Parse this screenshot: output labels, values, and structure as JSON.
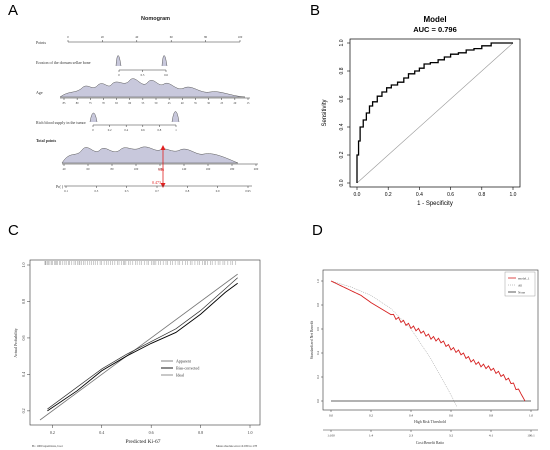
{
  "panels": {
    "a": {
      "letter": "A",
      "title": "Nomogram",
      "points_label": "Points",
      "points_ticks": [
        "0",
        "20",
        "40",
        "60",
        "80",
        "100"
      ],
      "row1_label": "Erosion of the dorsum sellae bone",
      "row1_ticks": [
        "0",
        "0.5",
        "0.6"
      ],
      "age_label": "Age",
      "age_ticks": [
        "85",
        "80",
        "75",
        "70",
        "65",
        "60",
        "55",
        "50",
        "45",
        "40",
        "35",
        "30",
        "25",
        "20",
        "15"
      ],
      "row3_label": "Rich blood supply in the tumor",
      "row3_ticks": [
        "0",
        "0.2",
        "0.4",
        "0.6",
        "0.8",
        "1"
      ],
      "total_label": "Total points",
      "total_ticks": [
        "40",
        "60",
        "80",
        "100",
        "120",
        "140",
        "160",
        "180",
        "200"
      ],
      "total_marker": "146",
      "prob_label": "Pr( )",
      "prob_ticks": [
        "0.1",
        "0.3",
        "0.5",
        "0.7",
        "0.8",
        "0.9",
        "0.95"
      ],
      "prob_marker": "0.473"
    },
    "b": {
      "letter": "B",
      "title": "Model",
      "subtitle": "AUC = 0.796",
      "xlabel": "1 - Specificity",
      "ylabel": "Sensitivity",
      "xticks": [
        "0.0",
        "0.2",
        "0.4",
        "0.6",
        "0.8",
        "1.0"
      ],
      "yticks": [
        "0.0",
        "0.2",
        "0.4",
        "0.6",
        "0.8",
        "1.0"
      ]
    },
    "c": {
      "letter": "C",
      "xlabel": "Predicted Ki-67",
      "ylabel": "Actual Probability",
      "xticks": [
        "0.2",
        "0.4",
        "0.6",
        "0.8",
        "1.0"
      ],
      "yticks": [
        "0.2",
        "0.4",
        "0.6",
        "0.8",
        "1.0"
      ],
      "legend": [
        "Apparent",
        "Bias-corrected",
        "Ideal"
      ],
      "footer_left": "B= 1000 repetitions, boot",
      "footer_right": "Mean absolute error=0.039 n=178"
    },
    "d": {
      "letter": "D",
      "xlabel": "High Risk Threshold",
      "ylabel": "Standardized Net Benefit",
      "x2label": "Cost:Benefit Ratio",
      "xticks": [
        "0.0",
        "0.2",
        "0.4",
        "0.6",
        "0.8",
        "1.0"
      ],
      "yticks": [
        "0.0",
        "0.2",
        "0.4",
        "0.6",
        "0.8",
        "1.0"
      ],
      "x2ticks": [
        "1:100",
        "1:4",
        "2:3",
        "3:2",
        "4:1",
        "100:1"
      ],
      "legend": [
        "model_1",
        "All",
        "None"
      ]
    }
  },
  "chart_data": [
    {
      "type": "line",
      "panel": "B",
      "title": "Model",
      "subtitle": "AUC = 0.796",
      "xlabel": "1 - Specificity",
      "ylabel": "Sensitivity",
      "xlim": [
        0,
        1
      ],
      "ylim": [
        0,
        1
      ],
      "series": [
        {
          "x": [
            0,
            0,
            0.01,
            0.01,
            0.02,
            0.02,
            0.04,
            0.04,
            0.06,
            0.06,
            0.08,
            0.08,
            0.1,
            0.1,
            0.13,
            0.13,
            0.16,
            0.16,
            0.19,
            0.19,
            0.22,
            0.22,
            0.26,
            0.26,
            0.3,
            0.3,
            0.33,
            0.33,
            0.37,
            0.37,
            0.4,
            0.4,
            0.43,
            0.43,
            0.47,
            0.47,
            0.52,
            0.52,
            0.56,
            0.56,
            0.6,
            0.6,
            0.65,
            0.65,
            0.7,
            0.7,
            0.75,
            0.75,
            0.8,
            0.8,
            0.86,
            0.86,
            0.93,
            1.0
          ],
          "y": [
            0,
            0.2,
            0.2,
            0.3,
            0.3,
            0.4,
            0.4,
            0.45,
            0.45,
            0.5,
            0.5,
            0.55,
            0.55,
            0.58,
            0.58,
            0.62,
            0.62,
            0.65,
            0.65,
            0.68,
            0.68,
            0.7,
            0.7,
            0.72,
            0.72,
            0.75,
            0.75,
            0.78,
            0.78,
            0.8,
            0.8,
            0.82,
            0.82,
            0.85,
            0.85,
            0.86,
            0.86,
            0.88,
            0.88,
            0.9,
            0.9,
            0.92,
            0.92,
            0.93,
            0.93,
            0.95,
            0.95,
            0.96,
            0.96,
            0.98,
            0.98,
            1.0,
            1.0,
            1.0
          ]
        },
        {
          "x": [
            0,
            1
          ],
          "y": [
            0,
            1
          ]
        }
      ]
    },
    {
      "type": "line",
      "panel": "C",
      "xlabel": "Predicted Ki-67",
      "ylabel": "Actual Probability",
      "xlim": [
        0.15,
        1.0
      ],
      "ylim": [
        0.15,
        1.0
      ],
      "series": [
        {
          "name": "Apparent",
          "x": [
            0.18,
            0.3,
            0.4,
            0.5,
            0.6,
            0.7,
            0.8,
            0.9,
            0.95
          ],
          "y": [
            0.21,
            0.33,
            0.43,
            0.51,
            0.58,
            0.65,
            0.75,
            0.87,
            0.93
          ]
        },
        {
          "name": "Bias-corrected",
          "x": [
            0.18,
            0.3,
            0.4,
            0.5,
            0.6,
            0.7,
            0.8,
            0.9,
            0.95
          ],
          "y": [
            0.2,
            0.31,
            0.42,
            0.5,
            0.57,
            0.63,
            0.73,
            0.85,
            0.9
          ]
        },
        {
          "name": "Ideal",
          "x": [
            0.15,
            0.95
          ],
          "y": [
            0.15,
            0.95
          ]
        }
      ],
      "footer_left": "B= 1000 repetitions, boot",
      "footer_right": "Mean absolute error=0.039 n=178"
    },
    {
      "type": "line",
      "panel": "D",
      "xlabel": "High Risk Threshold",
      "ylabel": "Standardized Net Benefit",
      "x2label": "Cost:Benefit Ratio",
      "xlim": [
        0,
        1
      ],
      "ylim": [
        -0.05,
        1.05
      ],
      "series": [
        {
          "name": "model_1",
          "x": [
            0,
            0.05,
            0.1,
            0.15,
            0.2,
            0.25,
            0.3,
            0.35,
            0.4,
            0.45,
            0.5,
            0.55,
            0.6,
            0.65,
            0.7,
            0.75,
            0.8,
            0.85,
            0.9,
            0.95,
            0.97
          ],
          "y": [
            1.0,
            0.96,
            0.92,
            0.88,
            0.82,
            0.77,
            0.72,
            0.67,
            0.62,
            0.58,
            0.53,
            0.5,
            0.44,
            0.4,
            0.34,
            0.3,
            0.27,
            0.22,
            0.16,
            0.06,
            0.0
          ]
        },
        {
          "name": "All",
          "x": [
            0,
            0.1,
            0.2,
            0.3,
            0.4,
            0.5,
            0.55,
            0.6,
            0.63
          ],
          "y": [
            1.0,
            0.95,
            0.88,
            0.77,
            0.6,
            0.35,
            0.2,
            0.05,
            -0.05
          ]
        },
        {
          "name": "None",
          "x": [
            0,
            1
          ],
          "y": [
            0,
            0
          ]
        }
      ]
    }
  ],
  "colors": {
    "roc": "#000000",
    "diagonal": "#9a9a9a",
    "dca_model": "#d62020",
    "density_fill": "#c8c8dc",
    "marker": "#e02020"
  }
}
